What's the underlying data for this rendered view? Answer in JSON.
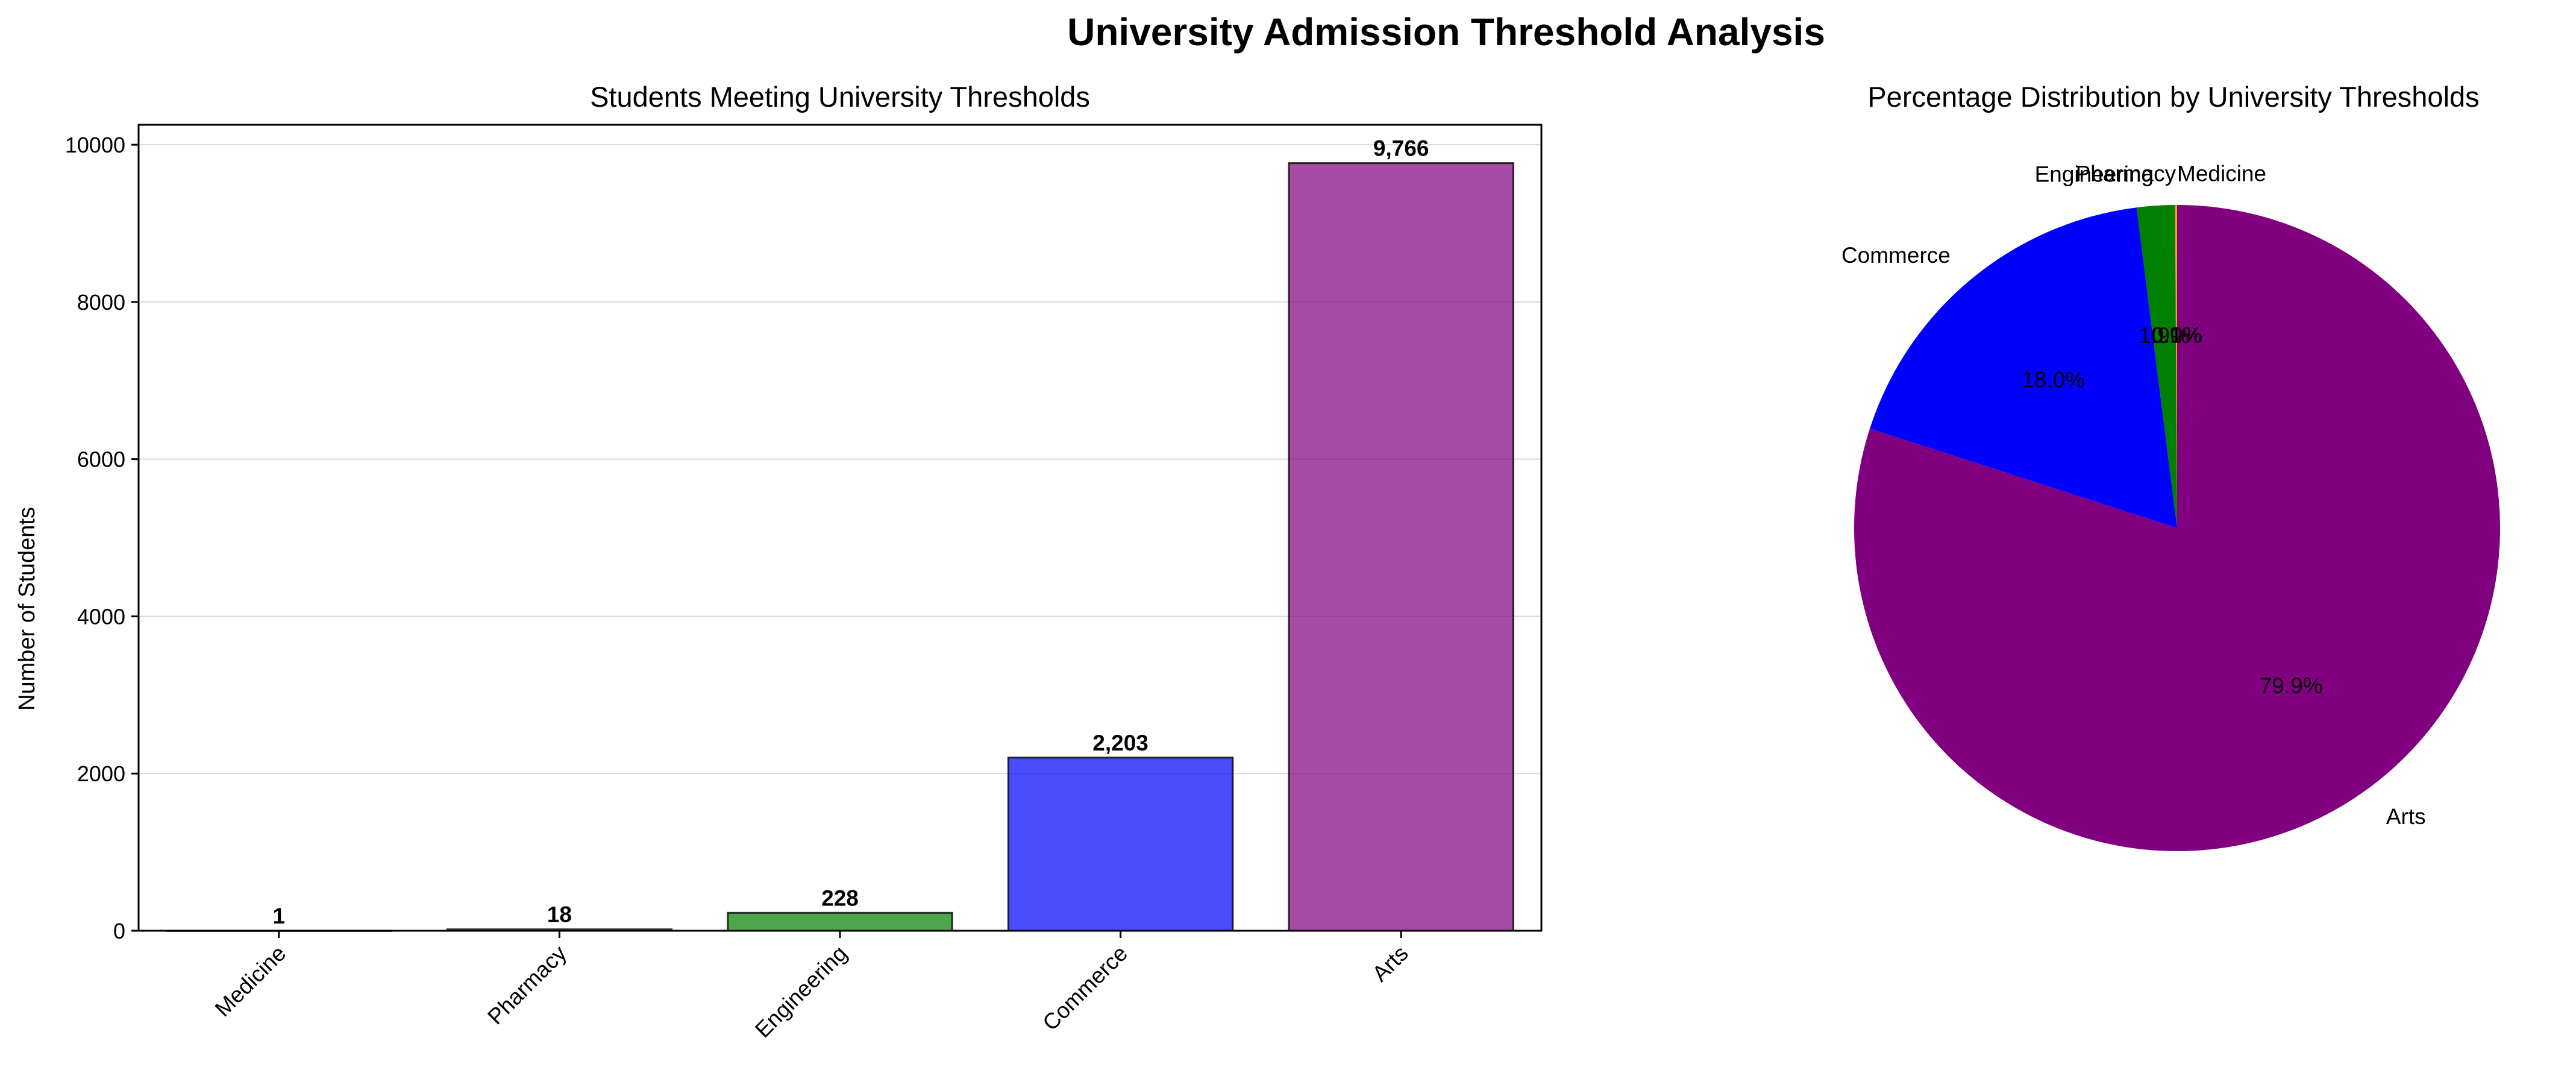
{
  "figure": {
    "suptitle": "University Admission Threshold Analysis"
  },
  "chart_data": [
    {
      "type": "bar",
      "title": "Students Meeting University Thresholds",
      "xlabel": "",
      "ylabel": "Number of Students",
      "categories": [
        "Medicine",
        "Pharmacy",
        "Engineering",
        "Commerce",
        "Arts"
      ],
      "values": [
        1,
        18,
        228,
        2203,
        9766
      ],
      "value_labels": [
        "1",
        "18",
        "228",
        "2,203",
        "9,766"
      ],
      "colors": [
        "#ff0000",
        "#ffa500",
        "#008000",
        "#0000ff",
        "#800080"
      ],
      "ylim": [
        0,
        10254
      ],
      "yticks": [
        0,
        2000,
        4000,
        6000,
        8000,
        10000
      ],
      "ytick_labels": [
        "0",
        "2000",
        "4000",
        "6000",
        "8000",
        "10000"
      ],
      "grid": "y"
    },
    {
      "type": "pie",
      "title": "Percentage Distribution by University Thresholds",
      "labels": [
        "Medicine",
        "Pharmacy",
        "Engineering",
        "Commerce",
        "Arts"
      ],
      "values": [
        0.0,
        0.1,
        1.9,
        18.0,
        79.9
      ],
      "pct_labels": [
        "0.0%",
        "0.1%",
        "1.9%",
        "18.0%",
        "79.9%"
      ],
      "colors": [
        "#ff0000",
        "#ffa500",
        "#008000",
        "#0000ff",
        "#800080"
      ]
    }
  ]
}
